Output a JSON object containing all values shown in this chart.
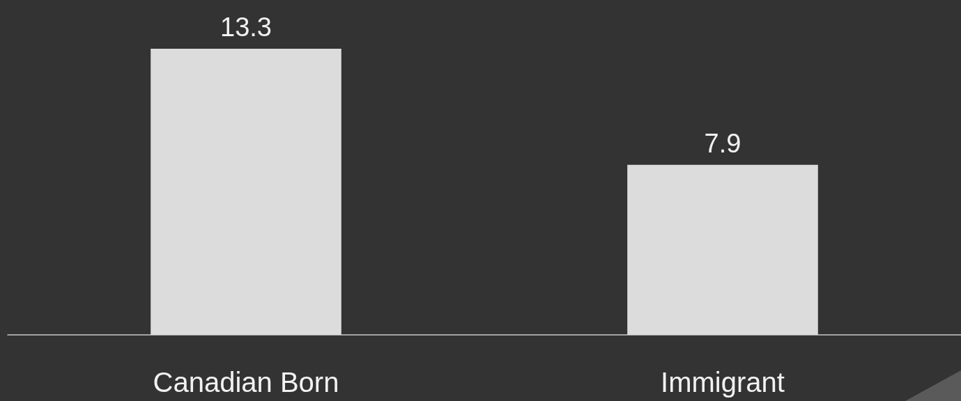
{
  "chart_data": {
    "type": "bar",
    "categories": [
      "Canadian Born",
      "Immigrant"
    ],
    "values": [
      13.3,
      7.9
    ],
    "color": "#dcdcdc",
    "data_labels": true
  }
}
